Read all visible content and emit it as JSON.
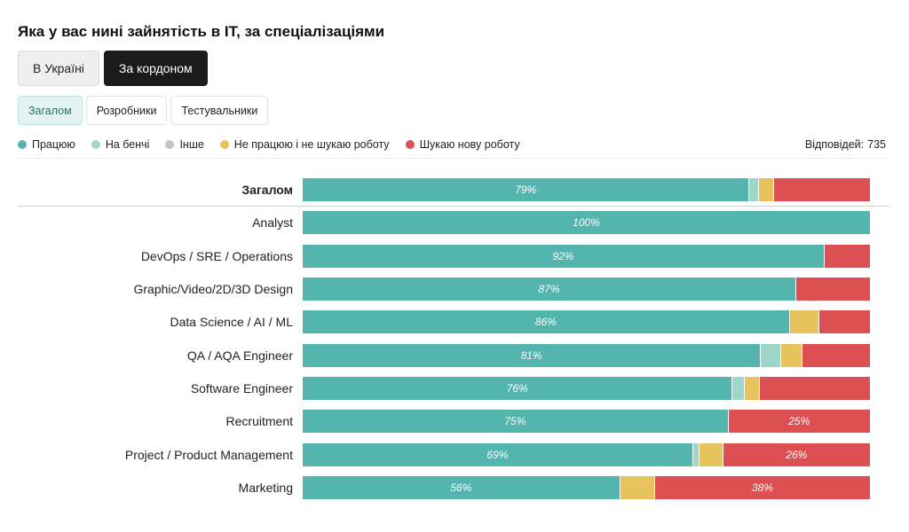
{
  "title": "Яка у вас нині зайнятість в IT, за спеціалізаціями",
  "region_tabs": [
    {
      "label": "В Україні",
      "active": false
    },
    {
      "label": "За кордоном",
      "active": true
    }
  ],
  "group_tabs": [
    {
      "label": "Загалом",
      "active": true
    },
    {
      "label": "Розробники",
      "active": false
    },
    {
      "label": "Тестувальники",
      "active": false
    }
  ],
  "responses": {
    "label": "Відповідей:",
    "value": "735"
  },
  "colors": {
    "working": "#53b5ae",
    "bench": "#9fd6ca",
    "other": "#c4c4c4",
    "not_looking": "#e6c35c",
    "looking": "#dc4f52"
  },
  "chart_data": {
    "type": "bar",
    "orientation": "horizontal",
    "stacked": true,
    "normalized": true,
    "series": [
      {
        "name": "Працюю",
        "color": "#53b5ae"
      },
      {
        "name": "На бенчі",
        "color": "#9fd6ca"
      },
      {
        "name": "Інше",
        "color": "#c4c4c4"
      },
      {
        "name": "Не працюю і не шукаю роботу",
        "color": "#e6c35c"
      },
      {
        "name": "Шукаю нову роботу",
        "color": "#dc4f52"
      }
    ],
    "rows": [
      {
        "category": "Загалом",
        "is_total": true,
        "values": [
          79,
          1.5,
          0,
          2.5,
          17
        ],
        "labels": [
          "79%",
          "",
          "",
          "",
          ""
        ]
      },
      {
        "category": "Analyst",
        "values": [
          100,
          0,
          0,
          0,
          0
        ],
        "labels": [
          "100%",
          "",
          "",
          "",
          ""
        ]
      },
      {
        "category": "DevOps / SRE / Operations",
        "values": [
          92,
          0,
          0,
          0,
          8
        ],
        "labels": [
          "92%",
          "",
          "",
          "",
          ""
        ]
      },
      {
        "category": "Graphic/Video/2D/3D Design",
        "values": [
          87,
          0,
          0,
          0,
          13
        ],
        "labels": [
          "87%",
          "",
          "",
          "",
          ""
        ]
      },
      {
        "category": "Data Science / AI / ML",
        "values": [
          86,
          0,
          0,
          5,
          9
        ],
        "labels": [
          "86%",
          "",
          "",
          "",
          ""
        ]
      },
      {
        "category": "QA / AQA Engineer",
        "values": [
          81,
          3.5,
          0,
          3.5,
          12
        ],
        "labels": [
          "81%",
          "",
          "",
          "",
          ""
        ]
      },
      {
        "category": "Software Engineer",
        "values": [
          76,
          2,
          0,
          2.5,
          19.5
        ],
        "labels": [
          "76%",
          "",
          "",
          "",
          ""
        ]
      },
      {
        "category": "Recruitment",
        "values": [
          75,
          0,
          0,
          0,
          25
        ],
        "labels": [
          "75%",
          "",
          "",
          "",
          "25%"
        ]
      },
      {
        "category": "Project / Product Management",
        "values": [
          69,
          1,
          0,
          4,
          26
        ],
        "labels": [
          "69%",
          "",
          "",
          "",
          "26%"
        ]
      },
      {
        "category": "Marketing",
        "values": [
          56,
          0,
          0,
          6,
          38
        ],
        "labels": [
          "56%",
          "",
          "",
          "",
          "38%"
        ]
      }
    ],
    "xlim": [
      0,
      100
    ]
  }
}
